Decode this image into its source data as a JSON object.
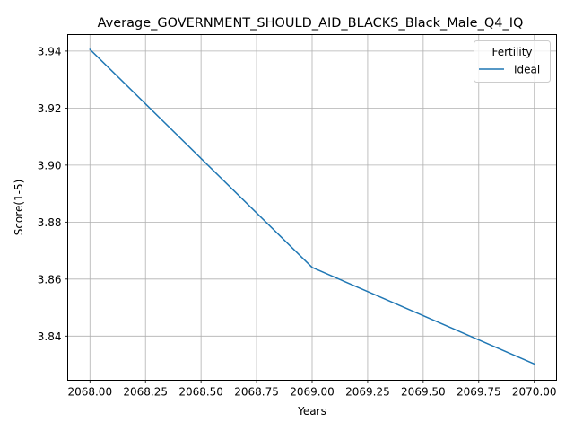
{
  "chart_data": {
    "type": "line",
    "title": "Average_GOVERNMENT_SHOULD_AID_BLACKS_Black_Male_Q4_IQ",
    "xlabel": "Years",
    "ylabel": "Score(1-5)",
    "xlim": [
      2067.9,
      2070.1
    ],
    "ylim": [
      3.8245,
      3.9458
    ],
    "x_ticks": [
      2068.0,
      2068.25,
      2068.5,
      2068.75,
      2069.0,
      2069.25,
      2069.5,
      2069.75,
      2070.0
    ],
    "x_tick_labels": [
      "2068.00",
      "2068.25",
      "2068.50",
      "2068.75",
      "2069.00",
      "2069.25",
      "2069.50",
      "2069.75",
      "2070.00"
    ],
    "y_ticks": [
      3.84,
      3.86,
      3.88,
      3.9,
      3.92,
      3.94
    ],
    "y_tick_labels": [
      "3.84",
      "3.86",
      "3.88",
      "3.90",
      "3.92",
      "3.94"
    ],
    "grid": true,
    "legend": {
      "title": "Fertility",
      "placement": "top-right"
    },
    "series": [
      {
        "name": "Ideal",
        "color": "#1f77b4",
        "x": [
          2068,
          2069,
          2070
        ],
        "y": [
          3.9406,
          3.8641,
          3.8302
        ]
      }
    ]
  }
}
